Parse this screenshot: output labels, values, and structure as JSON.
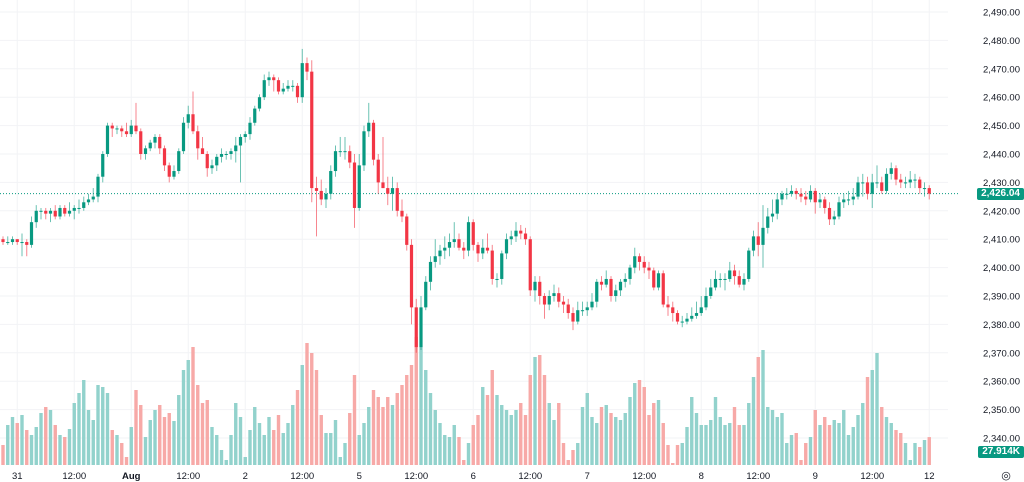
{
  "chart_data": {
    "type": "candlestick",
    "title": "",
    "ylim": [
      2340,
      2490
    ],
    "y_ticks": [
      "2,490.00",
      "2,480.00",
      "2,470.00",
      "2,460.00",
      "2,450.00",
      "2,440.00",
      "2,430.00",
      "2,420.00",
      "2,410.00",
      "2,400.00",
      "2,390.00",
      "2,380.00",
      "2,370.00",
      "2,360.00",
      "2,350.00",
      "2,340.00"
    ],
    "y_tick_values": [
      2490,
      2480,
      2470,
      2460,
      2450,
      2440,
      2430,
      2420,
      2410,
      2400,
      2390,
      2380,
      2370,
      2360,
      2350,
      2340
    ],
    "x_ticks": [
      {
        "label": "31",
        "index": 3
      },
      {
        "label": "12:00",
        "index": 15
      },
      {
        "label": "Aug",
        "index": 27,
        "bold": true
      },
      {
        "label": "12:00",
        "index": 39
      },
      {
        "label": "2",
        "index": 51
      },
      {
        "label": "12:00",
        "index": 63
      },
      {
        "label": "5",
        "index": 75
      },
      {
        "label": "12:00",
        "index": 87
      },
      {
        "label": "6",
        "index": 99
      },
      {
        "label": "12:00",
        "index": 111
      },
      {
        "label": "7",
        "index": 123
      },
      {
        "label": "12:00",
        "index": 135
      },
      {
        "label": "8",
        "index": 147
      },
      {
        "label": "12:00",
        "index": 159
      },
      {
        "label": "9",
        "index": 171
      },
      {
        "label": "12:00",
        "index": 183
      },
      {
        "label": "12",
        "index": 195
      }
    ],
    "grid": true,
    "last_price": 2426.04,
    "last_price_label": "2,426.04",
    "last_volume_label": "27.914K",
    "colors": {
      "up": "#089981",
      "down": "#f23645",
      "volume_up": "#92d2cc",
      "volume_down": "#f7a9a7",
      "grid": "#f2f3f6",
      "last_price_line": "#089981"
    },
    "candle_fields": [
      "open",
      "high",
      "low",
      "close",
      "volume_k"
    ],
    "candles": [
      [
        2410,
        2411,
        2408,
        2409,
        20
      ],
      [
        2409,
        2411,
        2408,
        2409,
        40
      ],
      [
        2409,
        2411,
        2408,
        2410,
        48
      ],
      [
        2410,
        2410,
        2408,
        2409,
        42
      ],
      [
        2409,
        2412,
        2404,
        2409,
        50
      ],
      [
        2409,
        2410,
        2404,
        2408,
        35
      ],
      [
        2408,
        2418,
        2407,
        2416,
        30
      ],
      [
        2416,
        2422,
        2414,
        2420,
        38
      ],
      [
        2420,
        2421,
        2417,
        2420,
        52
      ],
      [
        2420,
        2421,
        2417,
        2419,
        58
      ],
      [
        2419,
        2421,
        2416,
        2420,
        55
      ],
      [
        2420,
        2422,
        2417,
        2418,
        40
      ],
      [
        2418,
        2422,
        2417,
        2421,
        30
      ],
      [
        2421,
        2422,
        2418,
        2419,
        28
      ],
      [
        2419,
        2423,
        2418,
        2420,
        36
      ],
      [
        2420,
        2422,
        2417,
        2421,
        62
      ],
      [
        2421,
        2424,
        2419,
        2421,
        72
      ],
      [
        2421,
        2425,
        2420,
        2423,
        85
      ],
      [
        2423,
        2426,
        2422,
        2424,
        55
      ],
      [
        2424,
        2428,
        2423,
        2425,
        45
      ],
      [
        2425,
        2433,
        2423,
        2432,
        80
      ],
      [
        2432,
        2441,
        2430,
        2440,
        78
      ],
      [
        2440,
        2451,
        2439,
        2450,
        72
      ],
      [
        2450,
        2451,
        2446,
        2449,
        35
      ],
      [
        2449,
        2450,
        2447,
        2449,
        30
      ],
      [
        2449,
        2450,
        2446,
        2448,
        22
      ],
      [
        2448,
        2451,
        2446,
        2447,
        8
      ],
      [
        2447,
        2452,
        2446,
        2450,
        38
      ],
      [
        2450,
        2458,
        2447,
        2448,
        75
      ],
      [
        2448,
        2449,
        2438,
        2440,
        60
      ],
      [
        2440,
        2443,
        2438,
        2442,
        28
      ],
      [
        2442,
        2445,
        2441,
        2444,
        45
      ],
      [
        2444,
        2447,
        2442,
        2446,
        55
      ],
      [
        2446,
        2447,
        2440,
        2442,
        60
      ],
      [
        2442,
        2443,
        2434,
        2436,
        48
      ],
      [
        2436,
        2437,
        2430,
        2432,
        52
      ],
      [
        2432,
        2436,
        2431,
        2434,
        44
      ],
      [
        2434,
        2442,
        2433,
        2441,
        70
      ],
      [
        2441,
        2453,
        2440,
        2451,
        95
      ],
      [
        2451,
        2457,
        2449,
        2454,
        105
      ],
      [
        2454,
        2462,
        2447,
        2448,
        118
      ],
      [
        2448,
        2450,
        2438,
        2442,
        80
      ],
      [
        2442,
        2446,
        2440,
        2440,
        62
      ],
      [
        2440,
        2441,
        2432,
        2435,
        65
      ],
      [
        2435,
        2438,
        2433,
        2436,
        38
      ],
      [
        2436,
        2440,
        2434,
        2439,
        30
      ],
      [
        2439,
        2442,
        2437,
        2440,
        15
      ],
      [
        2440,
        2441,
        2438,
        2440,
        5
      ],
      [
        2440,
        2442,
        2438,
        2441,
        30
      ],
      [
        2441,
        2446,
        2437,
        2443,
        62
      ],
      [
        2443,
        2447,
        2430,
        2446,
        48
      ],
      [
        2446,
        2448,
        2444,
        2447,
        8
      ],
      [
        2447,
        2453,
        2445,
        2451,
        35
      ],
      [
        2451,
        2457,
        2450,
        2456,
        58
      ],
      [
        2456,
        2461,
        2455,
        2460,
        42
      ],
      [
        2460,
        2468,
        2459,
        2466,
        30
      ],
      [
        2466,
        2469,
        2464,
        2467,
        48
      ],
      [
        2467,
        2468,
        2462,
        2466,
        35
      ],
      [
        2466,
        2467,
        2461,
        2462,
        50
      ],
      [
        2462,
        2465,
        2461,
        2463,
        32
      ],
      [
        2463,
        2466,
        2462,
        2464,
        42
      ],
      [
        2464,
        2466,
        2462,
        2464,
        60
      ],
      [
        2464,
        2465,
        2458,
        2460,
        75
      ],
      [
        2460,
        2477,
        2458,
        2472,
        100
      ],
      [
        2472,
        2474,
        2466,
        2469,
        122
      ],
      [
        2469,
        2473,
        2423,
        2428,
        112
      ],
      [
        2428,
        2432,
        2411,
        2427,
        95
      ],
      [
        2427,
        2431,
        2422,
        2424,
        50
      ],
      [
        2424,
        2428,
        2421,
        2426,
        32
      ],
      [
        2426,
        2436,
        2424,
        2434,
        32
      ],
      [
        2434,
        2443,
        2432,
        2441,
        45
      ],
      [
        2441,
        2446,
        2439,
        2441,
        8
      ],
      [
        2441,
        2446,
        2438,
        2441,
        22
      ],
      [
        2441,
        2443,
        2435,
        2437,
        52
      ],
      [
        2437,
        2440,
        2414,
        2421,
        90
      ],
      [
        2421,
        2440,
        2420,
        2436,
        30
      ],
      [
        2436,
        2450,
        2434,
        2448,
        42
      ],
      [
        2448,
        2458,
        2446,
        2451,
        58
      ],
      [
        2451,
        2452,
        2436,
        2438,
        75
      ],
      [
        2438,
        2440,
        2426,
        2430,
        68
      ],
      [
        2430,
        2446,
        2428,
        2428,
        58
      ],
      [
        2428,
        2432,
        2422,
        2426,
        68
      ],
      [
        2426,
        2432,
        2420,
        2428,
        60
      ],
      [
        2428,
        2430,
        2418,
        2420,
        72
      ],
      [
        2420,
        2424,
        2416,
        2418,
        80
      ],
      [
        2418,
        2419,
        2406,
        2408,
        90
      ],
      [
        2408,
        2410,
        2380,
        2386,
        100
      ],
      [
        2386,
        2389,
        2370,
        2372,
        128
      ],
      [
        2372,
        2390,
        2371,
        2386,
        118
      ],
      [
        2386,
        2397,
        2385,
        2395,
        95
      ],
      [
        2395,
        2404,
        2392,
        2402,
        72
      ],
      [
        2402,
        2410,
        2400,
        2404,
        55
      ],
      [
        2404,
        2408,
        2401,
        2406,
        42
      ],
      [
        2406,
        2411,
        2403,
        2407,
        30
      ],
      [
        2407,
        2412,
        2404,
        2409,
        28
      ],
      [
        2409,
        2416,
        2407,
        2410,
        40
      ],
      [
        2410,
        2412,
        2406,
        2407,
        28
      ],
      [
        2407,
        2409,
        2403,
        2406,
        5
      ],
      [
        2406,
        2418,
        2404,
        2416,
        22
      ],
      [
        2416,
        2417,
        2406,
        2408,
        40
      ],
      [
        2408,
        2409,
        2402,
        2405,
        50
      ],
      [
        2405,
        2410,
        2403,
        2407,
        78
      ],
      [
        2407,
        2412,
        2405,
        2406,
        70
      ],
      [
        2406,
        2408,
        2394,
        2396,
        95
      ],
      [
        2396,
        2398,
        2393,
        2396,
        70
      ],
      [
        2396,
        2406,
        2394,
        2405,
        60
      ],
      [
        2405,
        2412,
        2403,
        2410,
        55
      ],
      [
        2410,
        2413,
        2408,
        2411,
        50
      ],
      [
        2411,
        2416,
        2409,
        2413,
        55
      ],
      [
        2413,
        2415,
        2410,
        2412,
        62
      ],
      [
        2412,
        2414,
        2408,
        2410,
        50
      ],
      [
        2410,
        2411,
        2390,
        2392,
        90
      ],
      [
        2392,
        2397,
        2388,
        2395,
        108
      ],
      [
        2395,
        2397,
        2387,
        2390,
        110
      ],
      [
        2390,
        2391,
        2382,
        2387,
        90
      ],
      [
        2387,
        2392,
        2385,
        2390,
        62
      ],
      [
        2390,
        2394,
        2388,
        2391,
        45
      ],
      [
        2391,
        2393,
        2386,
        2388,
        62
      ],
      [
        2388,
        2390,
        2384,
        2387,
        22
      ],
      [
        2387,
        2389,
        2382,
        2384,
        5
      ],
      [
        2384,
        2386,
        2378,
        2381,
        15
      ],
      [
        2381,
        2388,
        2380,
        2385,
        22
      ],
      [
        2385,
        2388,
        2383,
        2385,
        58
      ],
      [
        2385,
        2388,
        2383,
        2386,
        72
      ],
      [
        2386,
        2391,
        2385,
        2388,
        48
      ],
      [
        2388,
        2396,
        2386,
        2395,
        42
      ],
      [
        2395,
        2397,
        2392,
        2394,
        58
      ],
      [
        2394,
        2399,
        2393,
        2396,
        60
      ],
      [
        2396,
        2397,
        2388,
        2390,
        52
      ],
      [
        2390,
        2394,
        2388,
        2392,
        48
      ],
      [
        2392,
        2396,
        2390,
        2395,
        45
      ],
      [
        2395,
        2398,
        2393,
        2396,
        52
      ],
      [
        2396,
        2401,
        2394,
        2400,
        68
      ],
      [
        2400,
        2407,
        2398,
        2404,
        82
      ],
      [
        2404,
        2405,
        2399,
        2402,
        85
      ],
      [
        2402,
        2404,
        2398,
        2400,
        78
      ],
      [
        2400,
        2402,
        2396,
        2399,
        50
      ],
      [
        2399,
        2400,
        2392,
        2393,
        62
      ],
      [
        2393,
        2399,
        2392,
        2398,
        65
      ],
      [
        2398,
        2399,
        2386,
        2387,
        42
      ],
      [
        2387,
        2390,
        2383,
        2386,
        20
      ],
      [
        2386,
        2388,
        2381,
        2384,
        2
      ],
      [
        2384,
        2385,
        2380,
        2381,
        20
      ],
      [
        2381,
        2383,
        2379,
        2381,
        22
      ],
      [
        2381,
        2384,
        2380,
        2382,
        38
      ],
      [
        2382,
        2386,
        2381,
        2383,
        68
      ],
      [
        2383,
        2388,
        2382,
        2384,
        52
      ],
      [
        2384,
        2390,
        2383,
        2386,
        40
      ],
      [
        2386,
        2393,
        2385,
        2390,
        40
      ],
      [
        2390,
        2396,
        2389,
        2393,
        45
      ],
      [
        2393,
        2399,
        2392,
        2396,
        68
      ],
      [
        2396,
        2398,
        2393,
        2396,
        48
      ],
      [
        2396,
        2398,
        2392,
        2396,
        40
      ],
      [
        2396,
        2402,
        2395,
        2399,
        42
      ],
      [
        2399,
        2401,
        2394,
        2397,
        58
      ],
      [
        2397,
        2399,
        2393,
        2394,
        40
      ],
      [
        2394,
        2398,
        2392,
        2396,
        40
      ],
      [
        2396,
        2407,
        2395,
        2406,
        62
      ],
      [
        2406,
        2413,
        2404,
        2411,
        88
      ],
      [
        2411,
        2416,
        2404,
        2408,
        108
      ],
      [
        2408,
        2422,
        2400,
        2414,
        115
      ],
      [
        2414,
        2421,
        2412,
        2418,
        58
      ],
      [
        2418,
        2424,
        2416,
        2419,
        55
      ],
      [
        2419,
        2426,
        2417,
        2424,
        48
      ],
      [
        2424,
        2427,
        2422,
        2426,
        52
      ],
      [
        2426,
        2428,
        2424,
        2426,
        22
      ],
      [
        2426,
        2429,
        2425,
        2427,
        30
      ],
      [
        2427,
        2428,
        2424,
        2426,
        32
      ],
      [
        2426,
        2428,
        2423,
        2425,
        5
      ],
      [
        2425,
        2427,
        2422,
        2424,
        22
      ],
      [
        2424,
        2429,
        2423,
        2427,
        28
      ],
      [
        2427,
        2428,
        2419,
        2423,
        55
      ],
      [
        2423,
        2426,
        2421,
        2424,
        40
      ],
      [
        2424,
        2425,
        2419,
        2421,
        48
      ],
      [
        2421,
        2423,
        2415,
        2417,
        40
      ],
      [
        2417,
        2420,
        2415,
        2418,
        45
      ],
      [
        2418,
        2425,
        2417,
        2423,
        42
      ],
      [
        2423,
        2426,
        2421,
        2424,
        55
      ],
      [
        2424,
        2427,
        2422,
        2424,
        30
      ],
      [
        2424,
        2428,
        2422,
        2425,
        38
      ],
      [
        2425,
        2432,
        2424,
        2430,
        50
      ],
      [
        2430,
        2433,
        2425,
        2430,
        62
      ],
      [
        2430,
        2432,
        2424,
        2426,
        88
      ],
      [
        2426,
        2433,
        2421,
        2430,
        95
      ],
      [
        2430,
        2436,
        2428,
        2430,
        112
      ],
      [
        2430,
        2432,
        2426,
        2427,
        58
      ],
      [
        2427,
        2435,
        2426,
        2433,
        48
      ],
      [
        2433,
        2437,
        2431,
        2435,
        42
      ],
      [
        2435,
        2436,
        2429,
        2431,
        35
      ],
      [
        2431,
        2433,
        2428,
        2430,
        32
      ],
      [
        2430,
        2432,
        2428,
        2430,
        22
      ],
      [
        2430,
        2434,
        2428,
        2431,
        5
      ],
      [
        2431,
        2433,
        2428,
        2431,
        22
      ],
      [
        2431,
        2432,
        2426,
        2428,
        18
      ],
      [
        2428,
        2430,
        2425,
        2428,
        25
      ],
      [
        2428,
        2429,
        2424,
        2426.04,
        27.914
      ]
    ]
  },
  "settings_icon": "gear-icon"
}
